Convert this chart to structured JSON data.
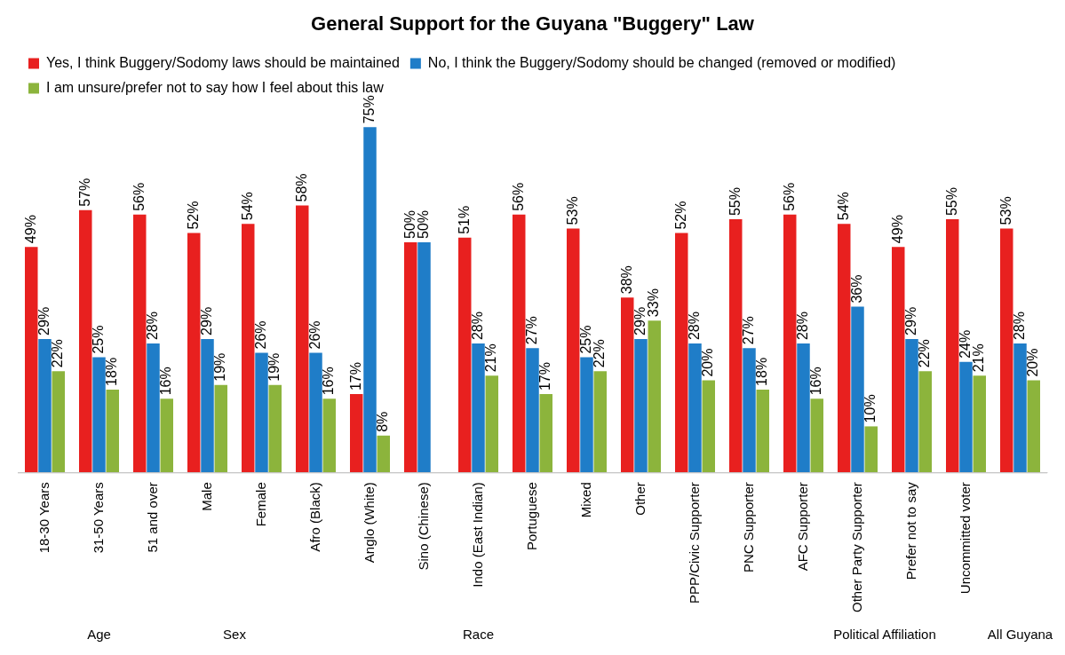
{
  "chart_data": {
    "type": "bar",
    "title": "General Support for the Guyana \"Buggery\" Law",
    "categories": [
      "18-30 Years",
      "31-50 Years",
      "51 and over",
      "Male",
      "Female",
      "Afro (Black)",
      "Anglo (White)",
      "Sino (Chinese)",
      "Indo (East Indian)",
      "Portuguese",
      "Mixed",
      "Other",
      "PPP/Civic Supporter",
      "PNC Supporter",
      "AFC Supporter",
      "Other Party Supporter",
      "Prefer not to say",
      "Uncommitted voter",
      null
    ],
    "series": [
      {
        "name": "Yes, I think Buggery/Sodomy laws should be maintained",
        "color": "#e8201f",
        "values": [
          49,
          57,
          56,
          52,
          54,
          58,
          17,
          50,
          51,
          56,
          53,
          38,
          52,
          55,
          56,
          54,
          49,
          55,
          53
        ],
        "value_labels": [
          "49%",
          "57%",
          "56%",
          "52%",
          "54%",
          "58%",
          "17%",
          "50%",
          "51%",
          "56%",
          "53%",
          "38%",
          "52%",
          "55%",
          "56%",
          "54%",
          "49%",
          "55%",
          "53%"
        ]
      },
      {
        "name": "No, I think the Buggery/Sodomy should be changed (removed or modified)",
        "color": "#1f7dc8",
        "values": [
          29,
          25,
          28,
          29,
          26,
          26,
          75,
          50,
          28,
          27,
          25,
          29,
          28,
          27,
          28,
          36,
          29,
          24,
          28
        ],
        "value_labels": [
          "29%",
          "25%",
          "28%",
          "29%",
          "26%",
          "26%",
          "75%",
          "50%",
          "28%",
          "27%",
          "25%",
          "29%",
          "28%",
          "27%",
          "28%",
          "36%",
          "29%",
          "24%",
          "28%"
        ]
      },
      {
        "name": "I am unsure/prefer not to say how I feel about this law",
        "color": "#8cb43c",
        "values": [
          22,
          18,
          16,
          19,
          19,
          16,
          8,
          null,
          21,
          17,
          22,
          33,
          20,
          18,
          16,
          10,
          22,
          21,
          20
        ],
        "value_labels": [
          "22%",
          "18%",
          "16%",
          "19%",
          "19%",
          "16%",
          "8%",
          null,
          "21%",
          "17%",
          "22%",
          "33%",
          "20%",
          "18%",
          "16%",
          "10%",
          "22%",
          "21%",
          "20%"
        ]
      }
    ],
    "annotations": [
      "Age",
      "Sex",
      "Race",
      "Political Affiliation",
      "All Guyana"
    ],
    "legend": "top",
    "grid": false
  }
}
